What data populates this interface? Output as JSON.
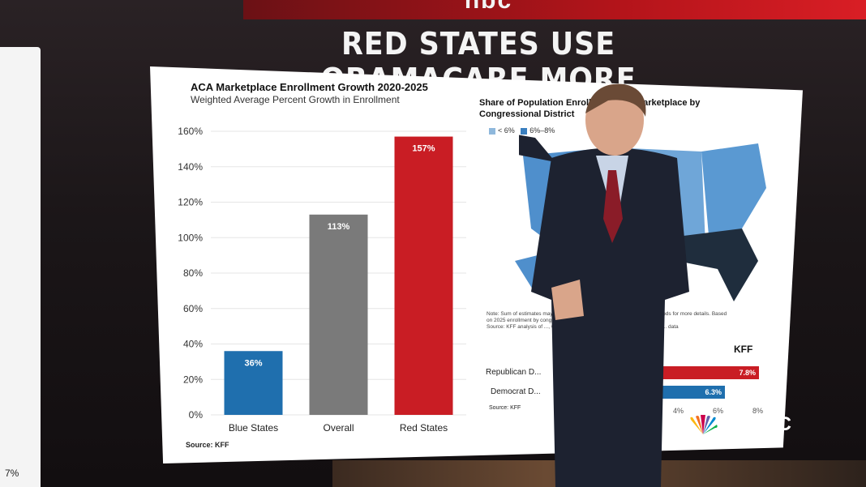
{
  "network_top_logo": "nbc",
  "headline": "RED STATES USE OBAMACARE MORE",
  "left_panel_value": "7%",
  "chart_data": {
    "type": "bar",
    "title": "ACA Marketplace Enrollment Growth 2020-2025",
    "subtitle": "Weighted Average Percent Growth in Enrollment",
    "categories": [
      "Blue States",
      "Overall",
      "Red States"
    ],
    "values": [
      36,
      113,
      157
    ],
    "value_labels": [
      "36%",
      "113%",
      "157%"
    ],
    "bar_colors": [
      "#1f6fae",
      "#7a7a7a",
      "#c91d24"
    ],
    "ylim": [
      0,
      160
    ],
    "yticks": [
      0,
      20,
      40,
      60,
      80,
      100,
      120,
      140,
      160
    ],
    "ytick_labels": [
      "0%",
      "20%",
      "40%",
      "60%",
      "80%",
      "100%",
      "120%",
      "140%",
      "160%"
    ],
    "grid": true,
    "source": "Source: KFF"
  },
  "map_panel": {
    "title": "Share of Population Enrolled in ACA Marketplace by Congressional District",
    "legend": [
      {
        "label": "< 6%",
        "color": "#8fb8dc"
      },
      {
        "label": "6%–8%",
        "color": "#3a7fbf"
      }
    ],
    "note": "Note: Sum of estimates may not add up to totals due to rounding. See methods for more details. Based on 2025 enrollment by congressional district and is as of O...",
    "note2": "Source: KFF analysis of ..., CMS state and county Open Enrollment Period ... data",
    "brand": "KFF",
    "rows": [
      {
        "label": "Republican D...",
        "value": 7.8,
        "value_label": "7.8%",
        "color": "#c91d24"
      },
      {
        "label": "Democrat D...",
        "value": 6.3,
        "value_label": "6.3%",
        "color": "#1f6fae"
      }
    ],
    "xticks": [
      "4%",
      "6%",
      "8%"
    ],
    "source": "Source: KFF"
  },
  "network_logo": "MSNBC"
}
